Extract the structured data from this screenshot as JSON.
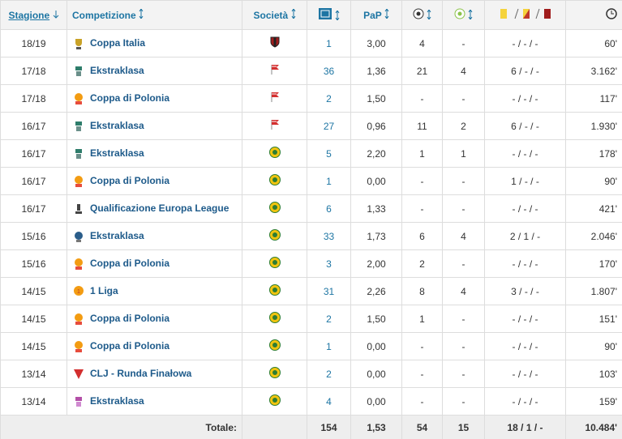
{
  "table": {
    "header": {
      "season": "Stagione",
      "competition": "Competizione",
      "club": "Società",
      "ppg": "PaP"
    },
    "rows": [
      {
        "season": "18/19",
        "competition": "Coppa Italia",
        "apps": "1",
        "ppg": "3,00",
        "goals": "4",
        "assists": "-",
        "cards": "- / - / -",
        "minutes": "60'"
      },
      {
        "season": "17/18",
        "competition": "Ekstraklasa",
        "apps": "36",
        "ppg": "1,36",
        "goals": "21",
        "assists": "4",
        "cards": "6 / - / -",
        "minutes": "3.162'"
      },
      {
        "season": "17/18",
        "competition": "Coppa di Polonia",
        "apps": "2",
        "ppg": "1,50",
        "goals": "-",
        "assists": "-",
        "cards": "- / - / -",
        "minutes": "117'"
      },
      {
        "season": "16/17",
        "competition": "Ekstraklasa",
        "apps": "27",
        "ppg": "0,96",
        "goals": "11",
        "assists": "2",
        "cards": "6 / - / -",
        "minutes": "1.930'"
      },
      {
        "season": "16/17",
        "competition": "Ekstraklasa",
        "apps": "5",
        "ppg": "2,20",
        "goals": "1",
        "assists": "1",
        "cards": "- / - / -",
        "minutes": "178'"
      },
      {
        "season": "16/17",
        "competition": "Coppa di Polonia",
        "apps": "1",
        "ppg": "0,00",
        "goals": "-",
        "assists": "-",
        "cards": "1 / - / -",
        "minutes": "90'"
      },
      {
        "season": "16/17",
        "competition": "Qualificazione Europa League",
        "apps": "6",
        "ppg": "1,33",
        "goals": "-",
        "assists": "-",
        "cards": "- / - / -",
        "minutes": "421'"
      },
      {
        "season": "15/16",
        "competition": "Ekstraklasa",
        "apps": "33",
        "ppg": "1,73",
        "goals": "6",
        "assists": "4",
        "cards": "2 / 1 / -",
        "minutes": "2.046'"
      },
      {
        "season": "15/16",
        "competition": "Coppa di Polonia",
        "apps": "3",
        "ppg": "2,00",
        "goals": "2",
        "assists": "-",
        "cards": "- / - / -",
        "minutes": "170'"
      },
      {
        "season": "14/15",
        "competition": "1 Liga",
        "apps": "31",
        "ppg": "2,26",
        "goals": "8",
        "assists": "4",
        "cards": "3 / - / -",
        "minutes": "1.807'"
      },
      {
        "season": "14/15",
        "competition": "Coppa di Polonia",
        "apps": "2",
        "ppg": "1,50",
        "goals": "1",
        "assists": "-",
        "cards": "- / - / -",
        "minutes": "151'"
      },
      {
        "season": "14/15",
        "competition": "Coppa di Polonia",
        "apps": "1",
        "ppg": "0,00",
        "goals": "-",
        "assists": "-",
        "cards": "- / - / -",
        "minutes": "90'"
      },
      {
        "season": "13/14",
        "competition": "CLJ - Runda Finałowa",
        "apps": "2",
        "ppg": "0,00",
        "goals": "-",
        "assists": "-",
        "cards": "- / - / -",
        "minutes": "103'"
      },
      {
        "season": "13/14",
        "competition": "Ekstraklasa",
        "apps": "4",
        "ppg": "0,00",
        "goals": "-",
        "assists": "-",
        "cards": "- / - / -",
        "minutes": "159'"
      }
    ],
    "footer": {
      "label": "Totale:",
      "apps": "154",
      "ppg": "1,53",
      "goals": "54",
      "assists": "15",
      "cards": "18 / 1 / -",
      "minutes": "10.484'"
    }
  }
}
